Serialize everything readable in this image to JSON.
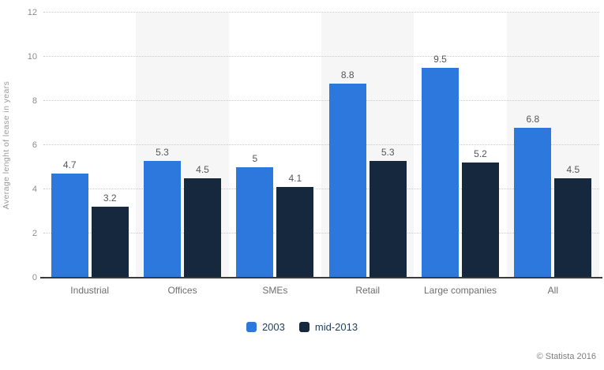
{
  "chart_data": {
    "type": "bar",
    "title": "",
    "xlabel": "",
    "ylabel": "Average lenght of lease in years",
    "ylim": [
      0,
      12
    ],
    "ytick_step": 2,
    "grid": "horizontal-dotted",
    "alternating_category_bands": true,
    "legend_position": "bottom-center",
    "categories": [
      "Industrial",
      "Offices",
      "SMEs",
      "Retail",
      "Large companies",
      "All"
    ],
    "series": [
      {
        "name": "2003",
        "color": "#2d78dd",
        "values": [
          4.7,
          5.3,
          5,
          8.8,
          9.5,
          6.8
        ]
      },
      {
        "name": "mid-2013",
        "color": "#15283e",
        "values": [
          3.2,
          4.5,
          4.1,
          5.3,
          5.2,
          4.5
        ]
      }
    ]
  },
  "footer": {
    "copyright": "© Statista 2016"
  }
}
